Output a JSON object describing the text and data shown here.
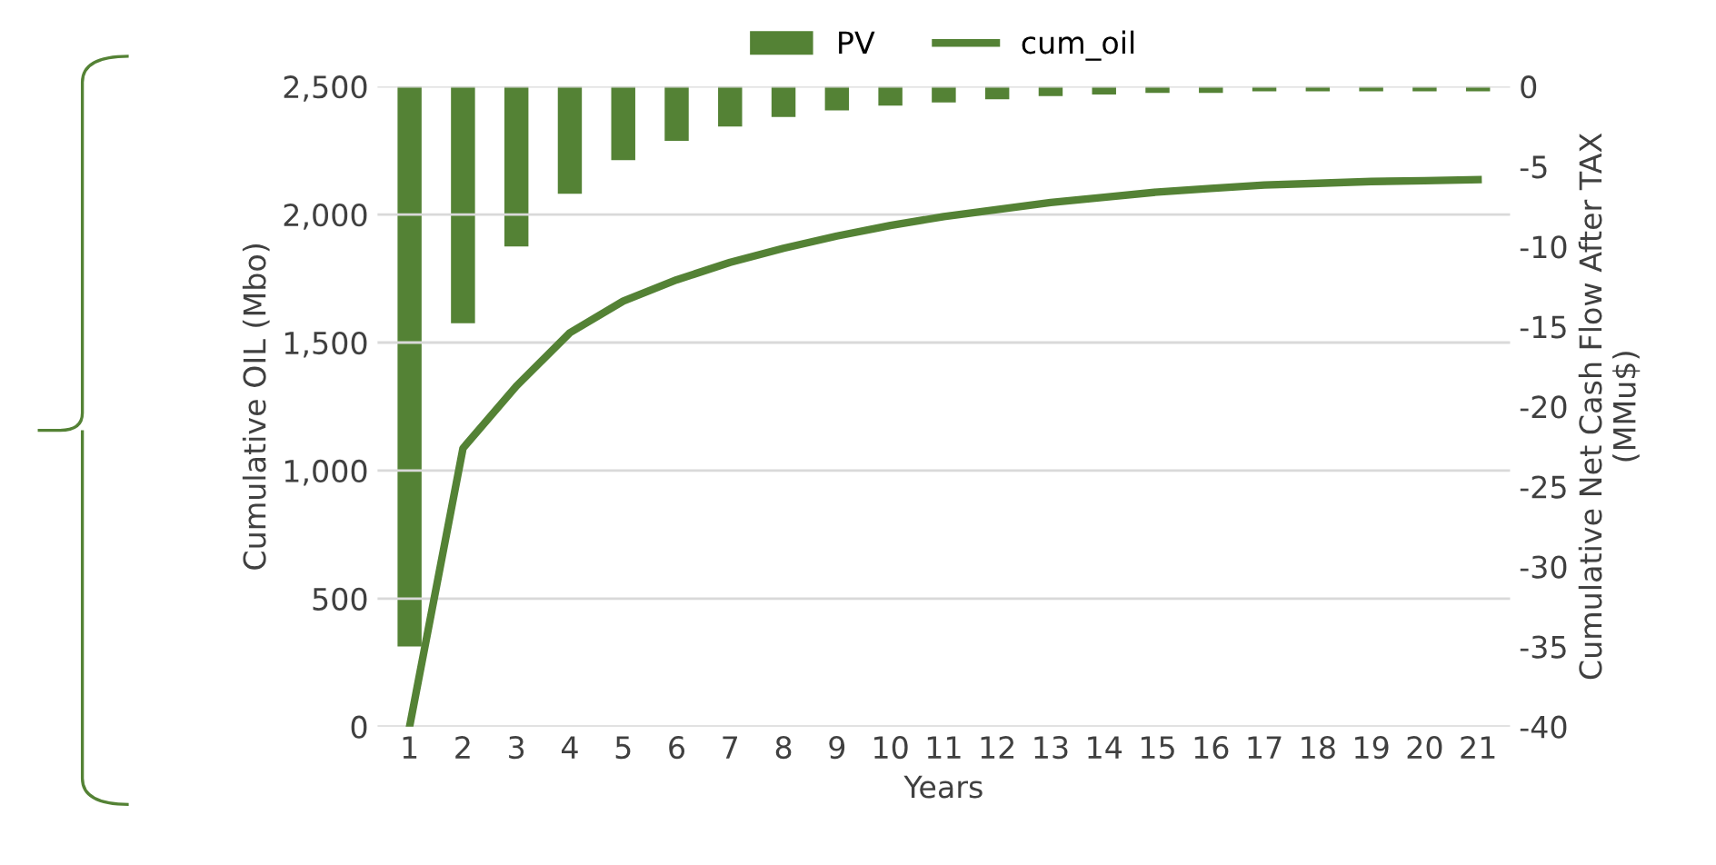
{
  "chart_data": {
    "type": "bar",
    "categories": [
      "1",
      "2",
      "3",
      "4",
      "5",
      "6",
      "7",
      "8",
      "9",
      "10",
      "11",
      "12",
      "13",
      "14",
      "15",
      "16",
      "17",
      "18",
      "19",
      "20",
      "21"
    ],
    "xlabel": "Years",
    "ylabel": "Cumulative OIL (Mbo)",
    "y2label": "Cumulative Net Cash Flow After TAX\n(MMu$)",
    "series": [
      {
        "name": "PV",
        "axis": "y2",
        "color": "#548235",
        "values": [
          -35,
          -14.8,
          -10,
          -6.7,
          -4.6,
          -3.4,
          -2.5,
          -1.9,
          -1.5,
          -1.2,
          -1.0,
          -0.8,
          -0.6,
          -0.5,
          -0.4,
          -0.4,
          -0.3,
          -0.3,
          -0.3,
          -0.3,
          -0.3
        ]
      },
      {
        "name": "cum_oil",
        "type": "line",
        "color": "#548235",
        "values": [
          0,
          1087,
          1330,
          1538,
          1662,
          1745,
          1813,
          1868,
          1916,
          1957,
          1992,
          2019,
          2047,
          2067,
          2088,
          2102,
          2115,
          2122,
          2129,
          2132,
          2136
        ]
      }
    ],
    "ylim": [
      0,
      2500
    ],
    "yticks": [
      {
        "value": 0,
        "label": "0"
      },
      {
        "value": 500,
        "label": "500"
      },
      {
        "value": 1000,
        "label": "1,000"
      },
      {
        "value": 1500,
        "label": "1,500"
      },
      {
        "value": 2000,
        "label": "2,000"
      },
      {
        "value": 2500,
        "label": "2,500"
      }
    ],
    "y2lim": [
      -40,
      0
    ],
    "y2ticks": [
      -40,
      -35,
      -30,
      -25,
      -20,
      -15,
      -10,
      -5,
      0
    ],
    "grid": "y",
    "legend": "top"
  }
}
